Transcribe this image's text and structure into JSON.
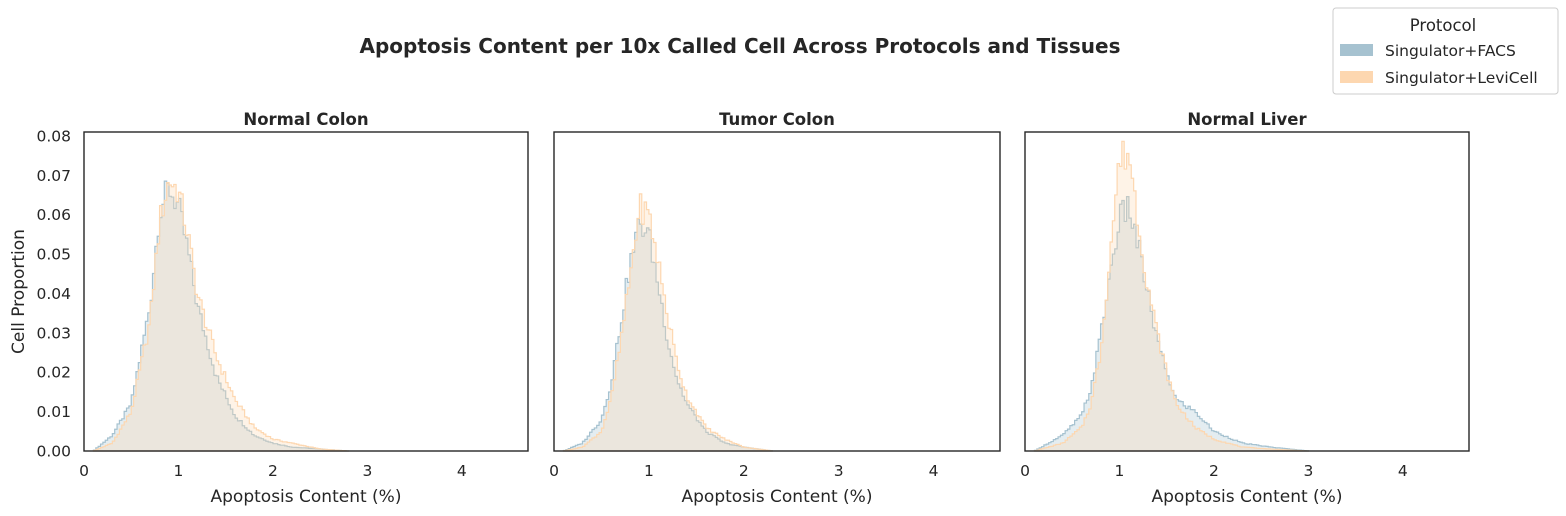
{
  "figure": {
    "title": "Apoptosis Content per 10x Called Cell Across Protocols and Tissues"
  },
  "colors": {
    "Singulator+FACS": "#a6c2d0",
    "Singulator+LeviCell": "#fdd7b0"
  },
  "legend": {
    "title": "Protocol",
    "placement": "top-right",
    "entries": [
      "Singulator+FACS",
      "Singulator+LeviCell"
    ]
  },
  "chart_data": [
    {
      "type": "area",
      "title": "Normal Colon",
      "xlabel": "Apoptosis Content (%)",
      "ylabel": "Cell Proportion",
      "xlim": [
        0,
        4.7
      ],
      "ylim": [
        0,
        0.081
      ],
      "xticks": [
        "0",
        "1",
        "2",
        "3",
        "4"
      ],
      "yticks": [
        "0.00",
        "0.01",
        "0.02",
        "0.03",
        "0.04",
        "0.05",
        "0.06",
        "0.07",
        "0.08"
      ],
      "grid": false,
      "series": [
        {
          "name": "Singulator+FACS",
          "x": [
            0.1,
            0.3,
            0.5,
            0.7,
            0.8,
            0.9,
            1.0,
            1.1,
            1.2,
            1.4,
            1.6,
            1.8,
            2.0,
            2.2,
            2.5,
            2.8
          ],
          "y": [
            0.0,
            0.004,
            0.012,
            0.037,
            0.061,
            0.067,
            0.062,
            0.051,
            0.037,
            0.019,
            0.009,
            0.004,
            0.002,
            0.001,
            0.0005,
            0.0
          ]
        },
        {
          "name": "Singulator+LeviCell",
          "x": [
            0.1,
            0.3,
            0.5,
            0.7,
            0.8,
            0.9,
            1.0,
            1.1,
            1.2,
            1.4,
            1.6,
            1.8,
            2.0,
            2.2,
            2.5,
            2.8
          ],
          "y": [
            0.0,
            0.002,
            0.01,
            0.033,
            0.058,
            0.069,
            0.066,
            0.055,
            0.04,
            0.024,
            0.013,
            0.006,
            0.003,
            0.002,
            0.0005,
            0.0
          ]
        }
      ]
    },
    {
      "type": "area",
      "title": "Tumor Colon",
      "xlabel": "Apoptosis Content (%)",
      "ylabel": "",
      "xlim": [
        0,
        4.7
      ],
      "ylim": [
        0,
        0.081
      ],
      "xticks": [
        "0",
        "1",
        "2",
        "3",
        "4"
      ],
      "yticks": [],
      "grid": false,
      "series": [
        {
          "name": "Singulator+FACS",
          "x": [
            0.1,
            0.3,
            0.5,
            0.6,
            0.7,
            0.8,
            0.9,
            1.0,
            1.1,
            1.2,
            1.3,
            1.4,
            1.6,
            1.8,
            2.0,
            2.3
          ],
          "y": [
            0.0,
            0.002,
            0.008,
            0.017,
            0.032,
            0.047,
            0.058,
            0.055,
            0.042,
            0.028,
            0.018,
            0.012,
            0.005,
            0.002,
            0.001,
            0.0
          ]
        },
        {
          "name": "Singulator+LeviCell",
          "x": [
            0.1,
            0.3,
            0.5,
            0.6,
            0.7,
            0.8,
            0.9,
            1.0,
            1.1,
            1.2,
            1.3,
            1.4,
            1.6,
            1.8,
            2.0,
            2.3
          ],
          "y": [
            0.0,
            0.001,
            0.005,
            0.013,
            0.027,
            0.044,
            0.062,
            0.06,
            0.048,
            0.034,
            0.022,
            0.014,
            0.006,
            0.003,
            0.001,
            0.0
          ]
        }
      ]
    },
    {
      "type": "area",
      "title": "Normal Liver",
      "xlabel": "Apoptosis Content (%)",
      "ylabel": "",
      "xlim": [
        0,
        4.7
      ],
      "ylim": [
        0,
        0.081
      ],
      "xticks": [
        "0",
        "1",
        "2",
        "3",
        "4"
      ],
      "yticks": [],
      "grid": false,
      "series": [
        {
          "name": "Singulator+FACS",
          "x": [
            0.1,
            0.4,
            0.6,
            0.7,
            0.8,
            0.9,
            1.0,
            1.1,
            1.2,
            1.3,
            1.4,
            1.5,
            1.6,
            1.8,
            2.0,
            2.3,
            2.6,
            3.0
          ],
          "y": [
            0.0,
            0.004,
            0.009,
            0.016,
            0.029,
            0.045,
            0.059,
            0.062,
            0.052,
            0.04,
            0.028,
            0.02,
            0.013,
            0.01,
            0.005,
            0.002,
            0.001,
            0.0
          ]
        },
        {
          "name": "Singulator+LeviCell",
          "x": [
            0.1,
            0.4,
            0.6,
            0.7,
            0.8,
            0.9,
            1.0,
            1.1,
            1.2,
            1.3,
            1.4,
            1.5,
            1.6,
            1.8,
            2.0,
            2.3,
            2.6,
            3.0
          ],
          "y": [
            0.0,
            0.002,
            0.006,
            0.012,
            0.025,
            0.05,
            0.074,
            0.076,
            0.058,
            0.042,
            0.03,
            0.02,
            0.012,
            0.006,
            0.003,
            0.001,
            0.0005,
            0.0
          ]
        }
      ]
    }
  ]
}
